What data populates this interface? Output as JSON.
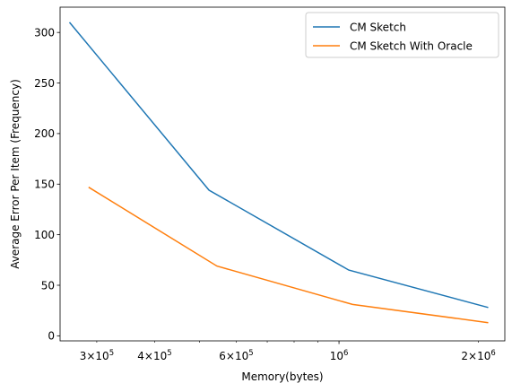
{
  "chart_data": {
    "type": "line",
    "title": "",
    "xlabel": "Memory(bytes)",
    "ylabel": "Average Error Per Item (Frequency)",
    "xscale": "log",
    "xlim": [
      250000,
      2280000
    ],
    "ylim": [
      -5,
      325
    ],
    "grid": false,
    "legend_position": "top-right",
    "colors": {
      "cm_sketch": "#1f77b4",
      "cm_oracle": "#ff7f0e"
    },
    "x_ticks_major": [
      {
        "value": 1000000,
        "base": "10",
        "exp": "6"
      }
    ],
    "x_ticks_minor": [
      {
        "value": 300000,
        "coef": "3",
        "base": "10",
        "exp": "5"
      },
      {
        "value": 400000,
        "coef": "4",
        "base": "10",
        "exp": "5"
      },
      {
        "value": 600000,
        "coef": "6",
        "base": "10",
        "exp": "5"
      },
      {
        "value": 2000000,
        "coef": "2",
        "base": "10",
        "exp": "6"
      }
    ],
    "x_ticks_minor_unlabeled": [
      500000,
      700000,
      800000,
      900000
    ],
    "y_ticks": [
      {
        "value": 0,
        "label": "0"
      },
      {
        "value": 50,
        "label": "50"
      },
      {
        "value": 100,
        "label": "100"
      },
      {
        "value": 150,
        "label": "150"
      },
      {
        "value": 200,
        "label": "200"
      },
      {
        "value": 250,
        "label": "250"
      },
      {
        "value": 300,
        "label": "300"
      }
    ],
    "series": [
      {
        "name": "CM Sketch",
        "points": [
          [
            262000,
            310
          ],
          [
            524000,
            144
          ],
          [
            1050000,
            65
          ],
          [
            2100000,
            28
          ]
        ]
      },
      {
        "name": "CM Sketch With Oracle",
        "points": [
          [
            288000,
            147
          ],
          [
            545000,
            69
          ],
          [
            1070000,
            31
          ],
          [
            2100000,
            13
          ]
        ]
      }
    ]
  }
}
